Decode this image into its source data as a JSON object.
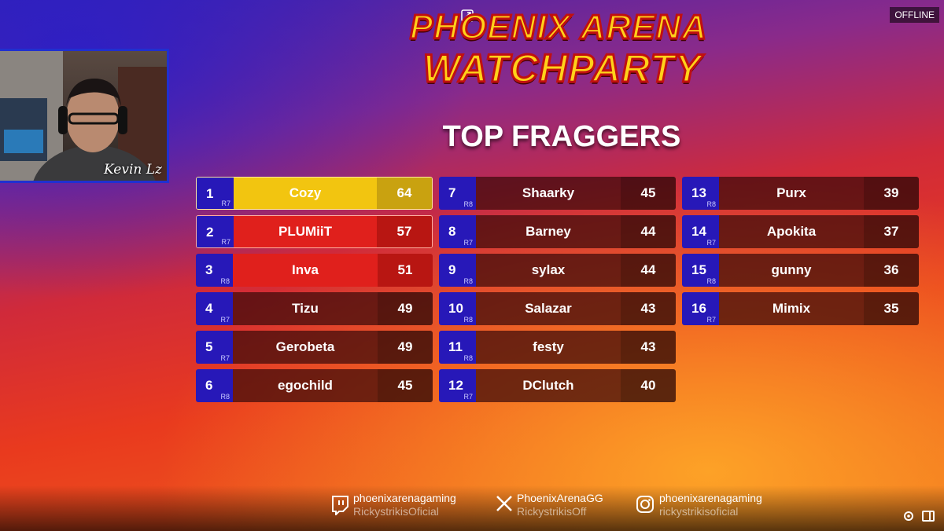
{
  "header": {
    "title_line1": "PHOENIX ARENA",
    "title_line2": "WATCHPARTY",
    "status": "OFFLINE"
  },
  "webcam": {
    "name": "Kevin Lz"
  },
  "leaderboard": {
    "title": "TOP FRAGGERS",
    "rows": [
      {
        "rank": 1,
        "tier": "R7",
        "name": "Cozy",
        "score": 64
      },
      {
        "rank": 2,
        "tier": "R7",
        "name": "PLUMiiT",
        "score": 57
      },
      {
        "rank": 3,
        "tier": "R8",
        "name": "Inva",
        "score": 51
      },
      {
        "rank": 4,
        "tier": "R7",
        "name": "Tizu",
        "score": 49
      },
      {
        "rank": 5,
        "tier": "R7",
        "name": "Gerobeta",
        "score": 49
      },
      {
        "rank": 6,
        "tier": "R8",
        "name": "egochild",
        "score": 45
      },
      {
        "rank": 7,
        "tier": "R8",
        "name": "Shaarky",
        "score": 45
      },
      {
        "rank": 8,
        "tier": "R7",
        "name": "Barney",
        "score": 44
      },
      {
        "rank": 9,
        "tier": "R8",
        "name": "sylax",
        "score": 44
      },
      {
        "rank": 10,
        "tier": "R8",
        "name": "Salazar",
        "score": 43
      },
      {
        "rank": 11,
        "tier": "R8",
        "name": "festy",
        "score": 43
      },
      {
        "rank": 12,
        "tier": "R7",
        "name": "DClutch",
        "score": 40
      },
      {
        "rank": 13,
        "tier": "R8",
        "name": "Purx",
        "score": 39
      },
      {
        "rank": 14,
        "tier": "R7",
        "name": "Apokita",
        "score": 37
      },
      {
        "rank": 15,
        "tier": "R8",
        "name": "gunny",
        "score": 36
      },
      {
        "rank": 16,
        "tier": "R7",
        "name": "Mimix",
        "score": 35
      }
    ]
  },
  "footer": {
    "socials": [
      {
        "primary": "phoenixarenagaming",
        "secondary": "RickystrikisOficial"
      },
      {
        "primary": "PhoenixArenaGG",
        "secondary": "RickystrikisOff"
      },
      {
        "primary": "phoenixarenagaming",
        "secondary": "rickystrikisoficial"
      }
    ]
  }
}
